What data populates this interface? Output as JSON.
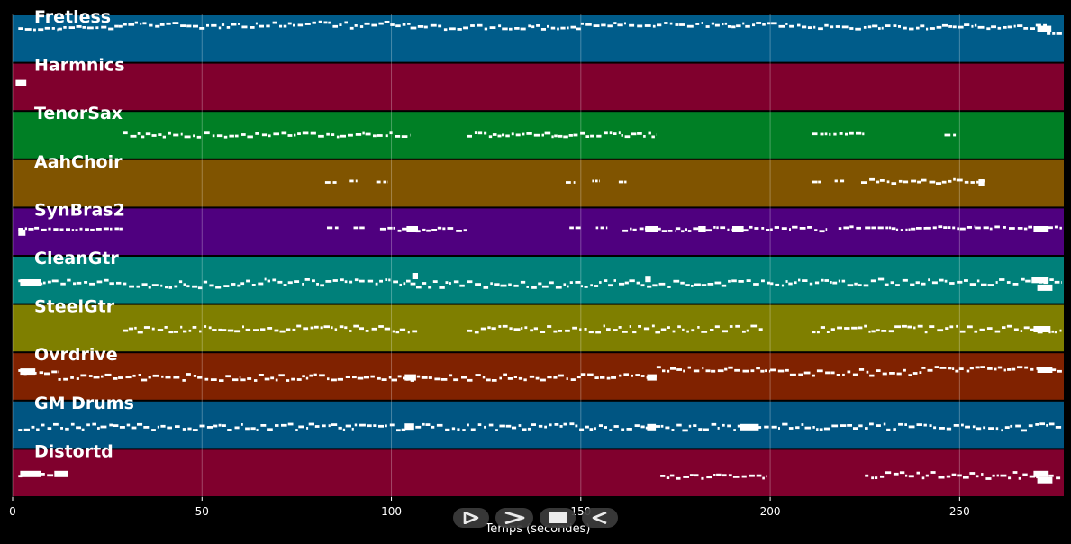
{
  "chart_data": {
    "type": "piano-roll",
    "xlabel": "Temps (secondes)",
    "xlim": [
      0,
      277.5
    ],
    "xticks": [
      0,
      50,
      100,
      150,
      200,
      250
    ],
    "grid": true,
    "tracks": [
      {
        "name": "Fretless",
        "color": "#005c8a",
        "segments": [
          [
            1.5,
            12,
            0.3,
            1
          ],
          [
            12,
            28,
            0.28,
            2
          ],
          [
            28,
            105,
            0.22,
            3
          ],
          [
            105,
            150,
            0.27,
            2
          ],
          [
            150,
            205,
            0.22,
            2
          ],
          [
            205,
            273,
            0.26,
            2
          ],
          [
            273,
            277,
            0.4,
            0
          ]
        ],
        "blocks": [
          [
            270.5,
            274.2,
            0.3
          ]
        ]
      },
      {
        "name": "Harmnics",
        "color": "#80002d",
        "segments": [],
        "blocks": [
          [
            0.8,
            3.6,
            0.42
          ]
        ]
      },
      {
        "name": "TenorSax",
        "color": "#007f25",
        "segments": [
          [
            29,
            105,
            0.5,
            2
          ],
          [
            120,
            170,
            0.5,
            2
          ],
          [
            211,
            225,
            0.48,
            1
          ],
          [
            246,
            249,
            0.5,
            0
          ]
        ],
        "blocks": []
      },
      {
        "name": "AahChoir",
        "color": "#805400",
        "segments": [
          [
            82.5,
            85.5,
            0.48,
            0
          ],
          [
            89,
            91,
            0.45,
            0
          ],
          [
            96,
            99,
            0.47,
            0
          ],
          [
            146,
            148.5,
            0.48,
            0
          ],
          [
            153,
            155,
            0.45,
            0
          ],
          [
            160,
            162.5,
            0.47,
            0
          ],
          [
            211,
            213.5,
            0.47,
            0
          ],
          [
            217,
            219.5,
            0.45,
            0
          ],
          [
            224,
            257,
            0.46,
            2
          ]
        ],
        "blocks": [
          [
            255,
            256.5,
            0.48
          ]
        ]
      },
      {
        "name": "SynBras2",
        "color": "#4f007f",
        "segments": [
          [
            1.5,
            29,
            0.45,
            1
          ],
          [
            83,
            86,
            0.42,
            0
          ],
          [
            90,
            93,
            0.42,
            0
          ],
          [
            97,
            120,
            0.45,
            2
          ],
          [
            147,
            150,
            0.42,
            0
          ],
          [
            154,
            157,
            0.42,
            0
          ],
          [
            161,
            175,
            0.45,
            2
          ],
          [
            175,
            215,
            0.45,
            2
          ],
          [
            218,
            224,
            0.42,
            1
          ],
          [
            225,
            232,
            0.42,
            0
          ],
          [
            232,
            241,
            0.45,
            1
          ],
          [
            241,
            254,
            0.42,
            1
          ],
          [
            254,
            277,
            0.42,
            1
          ]
        ],
        "blocks": [
          [
            1.5,
            3.4,
            0.52
          ],
          [
            104,
            107,
            0.45
          ],
          [
            167,
            170.5,
            0.45
          ],
          [
            181,
            183,
            0.45
          ],
          [
            190,
            193,
            0.45
          ],
          [
            269.5,
            273.5,
            0.45
          ]
        ]
      },
      {
        "name": "CleanGtr",
        "color": "#00807a",
        "segments": [
          [
            1.5,
            29,
            0.55,
            2
          ],
          [
            29,
            60,
            0.6,
            3
          ],
          [
            60,
            105,
            0.55,
            3
          ],
          [
            105,
            150,
            0.6,
            3
          ],
          [
            150,
            200,
            0.58,
            3
          ],
          [
            200,
            277,
            0.55,
            3
          ]
        ],
        "blocks": [
          [
            2,
            7.5,
            0.55
          ],
          [
            105.5,
            107,
            0.42
          ],
          [
            167,
            168.5,
            0.48
          ],
          [
            269,
            273.5,
            0.5
          ],
          [
            270.5,
            274.5,
            0.66
          ]
        ]
      },
      {
        "name": "SteelGtr",
        "color": "#7f7f00",
        "segments": [
          [
            29,
            107,
            0.52,
            3
          ],
          [
            120,
            198,
            0.52,
            3
          ],
          [
            211,
            277,
            0.52,
            3
          ]
        ],
        "blocks": [
          [
            269.5,
            274,
            0.52
          ]
        ]
      },
      {
        "name": "Ovrdrive",
        "color": "#802200",
        "segments": [
          [
            1.5,
            12,
            0.4,
            2
          ],
          [
            12,
            34,
            0.52,
            3
          ],
          [
            34,
            60,
            0.52,
            3
          ],
          [
            60,
            100,
            0.52,
            3
          ],
          [
            100,
            150,
            0.52,
            3
          ],
          [
            150,
            170,
            0.5,
            2
          ],
          [
            170,
            200,
            0.35,
            2
          ],
          [
            200,
            240,
            0.42,
            3
          ],
          [
            240,
            277,
            0.35,
            2
          ]
        ],
        "blocks": [
          [
            2,
            6,
            0.4
          ],
          [
            103.5,
            106.5,
            0.52
          ],
          [
            167.5,
            170,
            0.52
          ],
          [
            270.5,
            274.5,
            0.36
          ]
        ]
      },
      {
        "name": "GM Drums",
        "color": "#005582",
        "segments": [
          [
            1.5,
            277,
            0.55,
            3
          ]
        ],
        "blocks": [
          [
            103.5,
            106,
            0.54
          ],
          [
            167.5,
            169.8,
            0.55
          ],
          [
            192,
            197,
            0.55
          ]
        ]
      },
      {
        "name": "Distortd",
        "color": "#80002d",
        "segments": [
          [
            1.5,
            15,
            0.52,
            2
          ],
          [
            171,
            199,
            0.57,
            2
          ],
          [
            225,
            277,
            0.55,
            3
          ]
        ],
        "blocks": [
          [
            2,
            7.5,
            0.52
          ],
          [
            11,
            14.5,
            0.52
          ],
          [
            269.5,
            273.5,
            0.52
          ],
          [
            270.5,
            274.5,
            0.65
          ]
        ]
      }
    ]
  },
  "controls": {
    "buttons": [
      {
        "name": "play-outline-button",
        "icon": "play-outline-icon"
      },
      {
        "name": "forward-button",
        "icon": "chevron-right-icon"
      },
      {
        "name": "stop-button",
        "icon": "stop-icon"
      },
      {
        "name": "back-button",
        "icon": "play-reverse-icon"
      }
    ]
  }
}
